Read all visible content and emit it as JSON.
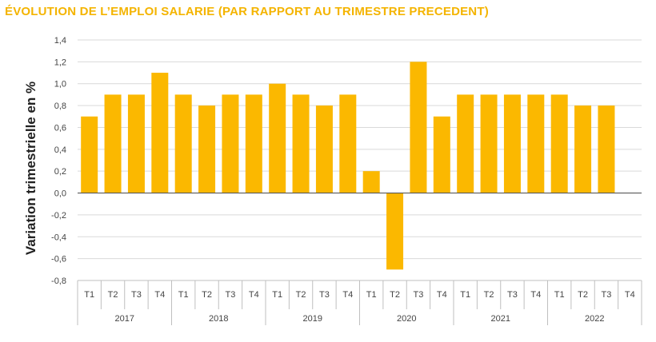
{
  "chart_data": {
    "type": "bar",
    "title": "ÉVOLUTION DE L’EMPLOI SALARIE (PAR RAPPORT AU TRIMESTRE PRECEDENT)",
    "xlabel": "",
    "ylabel": "Variation trimestrielle en %",
    "ylim": [
      -0.8,
      1.4
    ],
    "yticks": [
      "1,4",
      "1,2",
      "1,0",
      "0,8",
      "0,6",
      "0,4",
      "0,2",
      "0,0",
      "-0,2",
      "-0,4",
      "-0,6",
      "-0,8"
    ],
    "ytick_values": [
      1.4,
      1.2,
      1.0,
      0.8,
      0.6,
      0.4,
      0.2,
      0.0,
      -0.2,
      -0.4,
      -0.6,
      -0.8
    ],
    "quarter_labels": [
      "T1",
      "T2",
      "T3",
      "T4"
    ],
    "years": [
      "2017",
      "2018",
      "2019",
      "2020",
      "2021",
      "2022"
    ],
    "categories": [
      "2017 T1",
      "2017 T2",
      "2017 T3",
      "2017 T4",
      "2018 T1",
      "2018 T2",
      "2018 T3",
      "2018 T4",
      "2019 T1",
      "2019 T2",
      "2019 T3",
      "2019 T4",
      "2020 T1",
      "2020 T2",
      "2020 T3",
      "2020 T4",
      "2021 T1",
      "2021 T2",
      "2021 T3",
      "2021 T4",
      "2022 T1",
      "2022 T2",
      "2022 T3",
      "2022 T4"
    ],
    "values": [
      0.7,
      0.9,
      0.9,
      1.1,
      0.9,
      0.8,
      0.9,
      0.9,
      1.0,
      0.9,
      0.8,
      0.9,
      0.2,
      -0.7,
      1.2,
      0.7,
      0.9,
      0.9,
      0.9,
      0.9,
      0.9,
      0.8,
      0.8,
      null
    ],
    "grid": true,
    "legend": "none",
    "bar_color": "#fbb800",
    "grid_color": "#d9d9d9",
    "axis_color": "#595959",
    "title_color": "#f4b400"
  }
}
